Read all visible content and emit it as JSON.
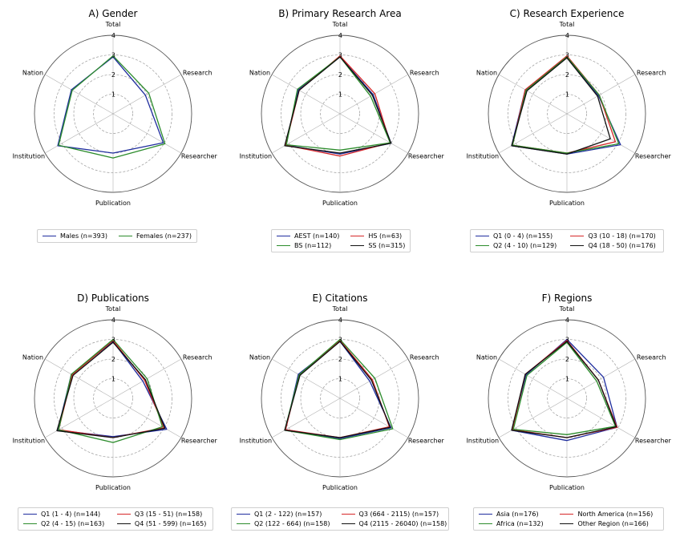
{
  "chart_data": [
    {
      "type": "radar",
      "title": "A) Gender",
      "axes": [
        "Total",
        "Research",
        "Researcher",
        "Publication",
        "Institution",
        "Nation"
      ],
      "rlim": [
        0,
        4
      ],
      "rticks": [
        "1",
        "2",
        "3",
        "4"
      ],
      "grid": true,
      "legend_position": "bottom",
      "series": [
        {
          "name": "Males (n=393)",
          "color": "#1f2d9e",
          "values": [
            2.9,
            1.9,
            2.95,
            2.0,
            3.25,
            2.45
          ]
        },
        {
          "name": "Females (n=237)",
          "color": "#2c8c2c",
          "values": [
            2.95,
            2.1,
            3.05,
            2.25,
            3.2,
            2.4
          ]
        }
      ]
    },
    {
      "type": "radar",
      "title": "B) Primary Research Area",
      "axes": [
        "Total",
        "Research",
        "Researcher",
        "Publication",
        "Institution",
        "Nation"
      ],
      "rlim": [
        0,
        4
      ],
      "rticks": [
        "1",
        "2",
        "3",
        "4"
      ],
      "grid": true,
      "legend_position": "bottom",
      "series": [
        {
          "name": "AEST (n=140)",
          "color": "#1f2d9e",
          "values": [
            2.9,
            1.95,
            3.0,
            2.05,
            3.2,
            2.45
          ]
        },
        {
          "name": "HS (n=63)",
          "color": "#d62728",
          "values": [
            2.95,
            2.05,
            2.95,
            2.15,
            3.2,
            2.4
          ]
        },
        {
          "name": "BS (n=112)",
          "color": "#2c8c2c",
          "values": [
            2.9,
            1.8,
            2.95,
            1.85,
            3.15,
            2.5
          ]
        },
        {
          "name": "SS (n=315)",
          "color": "#111111",
          "values": [
            2.9,
            1.9,
            3.0,
            2.0,
            3.25,
            2.4
          ]
        }
      ]
    },
    {
      "type": "radar",
      "title": "C) Research Experience",
      "axes": [
        "Total",
        "Research",
        "Researcher",
        "Publication",
        "Institution",
        "Nation"
      ],
      "rlim": [
        0,
        4
      ],
      "rticks": [
        "1",
        "2",
        "3",
        "4"
      ],
      "grid": true,
      "legend_position": "bottom",
      "series": [
        {
          "name": "Q1 (0 - 4) (n=155)",
          "color": "#1f2d9e",
          "values": [
            2.9,
            1.85,
            3.15,
            2.05,
            3.25,
            2.45
          ]
        },
        {
          "name": "Q3 (10 - 18) (n=170)",
          "color": "#d62728",
          "values": [
            2.95,
            1.9,
            2.85,
            2.0,
            3.2,
            2.45
          ]
        },
        {
          "name": "Q2 (4 - 10) (n=129)",
          "color": "#2c8c2c",
          "values": [
            2.9,
            1.9,
            3.05,
            2.0,
            3.2,
            2.4
          ]
        },
        {
          "name": "Q4 (18 - 50) (n=176)",
          "color": "#111111",
          "values": [
            2.85,
            1.8,
            2.55,
            2.05,
            3.25,
            2.35
          ]
        }
      ]
    },
    {
      "type": "radar",
      "title": "D) Publications",
      "axes": [
        "Total",
        "Research",
        "Researcher",
        "Publication",
        "Institution",
        "Nation"
      ],
      "rlim": [
        0,
        4
      ],
      "rticks": [
        "1",
        "2",
        "3",
        "4"
      ],
      "grid": true,
      "legend_position": "bottom",
      "series": [
        {
          "name": "Q1 (1 - 4) (n=144)",
          "color": "#1f2d9e",
          "values": [
            2.9,
            1.75,
            3.15,
            1.95,
            3.25,
            2.45
          ]
        },
        {
          "name": "Q3 (15 - 51) (n=158)",
          "color": "#d62728",
          "values": [
            2.95,
            1.85,
            3.0,
            2.0,
            3.2,
            2.4
          ]
        },
        {
          "name": "Q2 (4 - 15) (n=163)",
          "color": "#2c8c2c",
          "values": [
            3.0,
            2.0,
            2.9,
            2.25,
            3.2,
            2.45
          ]
        },
        {
          "name": "Q4 (51 - 599) (n=165)",
          "color": "#111111",
          "values": [
            2.85,
            1.9,
            3.05,
            2.0,
            3.3,
            2.35
          ]
        }
      ]
    },
    {
      "type": "radar",
      "title": "E) Citations",
      "axes": [
        "Total",
        "Research",
        "Researcher",
        "Publication",
        "Institution",
        "Nation"
      ],
      "rlim": [
        0,
        4
      ],
      "rticks": [
        "1",
        "2",
        "3",
        "4"
      ],
      "grid": true,
      "legend_position": "bottom",
      "series": [
        {
          "name": "Q1 (2 - 122) (n=157)",
          "color": "#1f2d9e",
          "values": [
            2.9,
            1.75,
            3.0,
            2.05,
            3.2,
            2.45
          ]
        },
        {
          "name": "Q3 (664 - 2115) (n=157)",
          "color": "#d62728",
          "values": [
            2.95,
            1.9,
            2.9,
            2.0,
            3.2,
            2.4
          ]
        },
        {
          "name": "Q2 (122 - 664) (n=158)",
          "color": "#2c8c2c",
          "values": [
            3.0,
            2.05,
            3.1,
            2.1,
            3.25,
            2.4
          ]
        },
        {
          "name": "Q4 (2115 - 26040) (n=158)",
          "color": "#111111",
          "values": [
            2.9,
            1.85,
            2.95,
            2.0,
            3.25,
            2.35
          ]
        }
      ]
    },
    {
      "type": "radar",
      "title": "F) Regions",
      "axes": [
        "Total",
        "Research",
        "Researcher",
        "Publication",
        "Institution",
        "Nation"
      ],
      "rlim": [
        0,
        4
      ],
      "rticks": [
        "1",
        "2",
        "3",
        "4"
      ],
      "grid": true,
      "legend_position": "bottom",
      "series": [
        {
          "name": "Asia (n=176)",
          "color": "#1f2d9e",
          "values": [
            3.0,
            2.15,
            2.95,
            2.15,
            3.25,
            2.4
          ]
        },
        {
          "name": "North America (n=156)",
          "color": "#d62728",
          "values": [
            2.95,
            1.85,
            2.95,
            2.0,
            3.2,
            2.45
          ]
        },
        {
          "name": "Africa (n=132)",
          "color": "#2c8c2c",
          "values": [
            2.85,
            1.75,
            2.85,
            1.85,
            3.15,
            2.35
          ]
        },
        {
          "name": "Other Region (n=166)",
          "color": "#111111",
          "values": [
            2.9,
            1.85,
            2.9,
            2.0,
            3.25,
            2.45
          ]
        }
      ]
    }
  ]
}
